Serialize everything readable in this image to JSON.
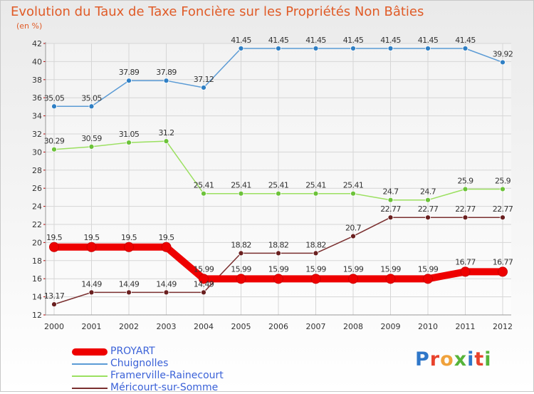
{
  "title": "Evolution du Taux de Taxe Foncière sur les Propriétés Non Bâties",
  "unit_label": "(en %)",
  "logo": {
    "text": "Proxiti",
    "letter_colors": [
      "#2f77c9",
      "#e8422c",
      "#f0a23b",
      "#56b43a",
      "#2f77c9",
      "#e8422c",
      "#56b43a"
    ]
  },
  "chart_data": {
    "type": "line",
    "title": "Evolution du Taux de Taxe Foncière sur les Propriétés Non Bâties",
    "ylabel": "(en %)",
    "xlabel": "",
    "ylim": [
      12,
      42
    ],
    "y_ticks": [
      12,
      14,
      16,
      18,
      20,
      22,
      24,
      26,
      28,
      30,
      32,
      34,
      36,
      38,
      40,
      42
    ],
    "categories": [
      "2000",
      "2001",
      "2002",
      "2003",
      "2004",
      "2005",
      "2006",
      "2007",
      "2008",
      "2009",
      "2010",
      "2011",
      "2012"
    ],
    "grid": true,
    "legend_position": "bottom-left",
    "series": [
      {
        "name": "PROYART",
        "color": "#ee0000",
        "marker_color": "#ee0000",
        "style": "thick",
        "values": [
          19.5,
          19.5,
          19.5,
          19.5,
          15.99,
          15.99,
          15.99,
          15.99,
          15.99,
          15.99,
          15.99,
          16.77,
          16.77
        ],
        "labels": [
          "19.5",
          "19.5",
          "19.5",
          "19.5",
          "15.99",
          "15.99",
          "15.99",
          "15.99",
          "15.99",
          "15.99",
          "15.99",
          "16.77",
          "16.77"
        ]
      },
      {
        "name": "Chuignolles",
        "color": "#5b9bd5",
        "marker_color": "#2f7fc4",
        "style": "thin",
        "values": [
          35.05,
          35.05,
          37.89,
          37.89,
          37.12,
          41.45,
          41.45,
          41.45,
          41.45,
          41.45,
          41.45,
          41.45,
          39.92
        ],
        "labels": [
          "35.05",
          "35.05",
          "37.89",
          "37.89",
          "37.12",
          "41.45",
          "41.45",
          "41.45",
          "41.45",
          "41.45",
          "41.45",
          "41.45",
          "39.92"
        ]
      },
      {
        "name": "Framerville-Rainecourt",
        "color": "#9be060",
        "marker_color": "#6cc23a",
        "style": "thin",
        "values": [
          30.29,
          30.59,
          31.05,
          31.2,
          25.41,
          25.41,
          25.41,
          25.41,
          25.41,
          24.7,
          24.7,
          25.9,
          25.9
        ],
        "labels": [
          "30.29",
          "30.59",
          "31.05",
          "31.2",
          "25.41",
          "25.41",
          "25.41",
          "25.41",
          "25.41",
          "24.7",
          "24.7",
          "25.9",
          "25.9"
        ]
      },
      {
        "name": "Méricourt-sur-Somme",
        "color": "#7a2f2f",
        "marker_color": "#6a1f1f",
        "style": "thin",
        "values": [
          13.17,
          14.49,
          14.49,
          14.49,
          14.49,
          18.82,
          18.82,
          18.82,
          20.7,
          22.77,
          22.77,
          22.77,
          22.77
        ],
        "labels": [
          "13.17",
          "14.49",
          "14.49",
          "14.49",
          "14.49",
          "18.82",
          "18.82",
          "18.82",
          "20.7",
          "22.77",
          "22.77",
          "22.77",
          "22.77"
        ]
      }
    ]
  }
}
